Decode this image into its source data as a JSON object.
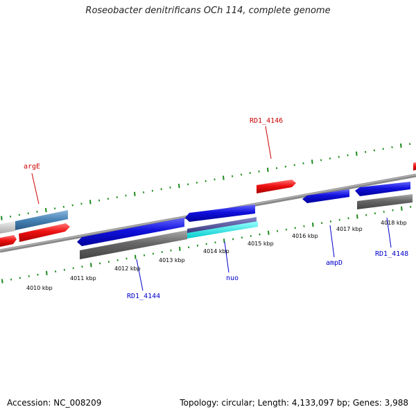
{
  "title": "Roseobacter denitrificans OCh 114, complete genome",
  "footer": {
    "accession": "Accession: NC_008209",
    "summary": "Topology: circular; Length: 4,133,097 bp; Genes: 3,988"
  },
  "colors": {
    "forward_strand": "#ee1111",
    "reverse_strand": "#1111dd",
    "backbone": "#888888",
    "tick": "#1a8a1a",
    "gene_label_forward": "#cc0000",
    "gene_label_reverse": "#0000cc",
    "cds_gray": "#666666",
    "cds_cyan": "#00e5e5",
    "cds_steel": "#4682b4"
  },
  "tick_labels": [
    "4010 kbp",
    "4011 kbp",
    "4012 kbp",
    "4013 kbp",
    "4014 kbp",
    "4015 kbp",
    "4016 kbp",
    "4017 kbp",
    "4018 kbp"
  ],
  "gene_labels": {
    "argE": "argE",
    "rd1_4146": "RD1_4146",
    "rd1_4144": "RD1_4144",
    "nuo": "nuo",
    "ampD": "ampD",
    "rd1_4148": "RD1_4148"
  }
}
